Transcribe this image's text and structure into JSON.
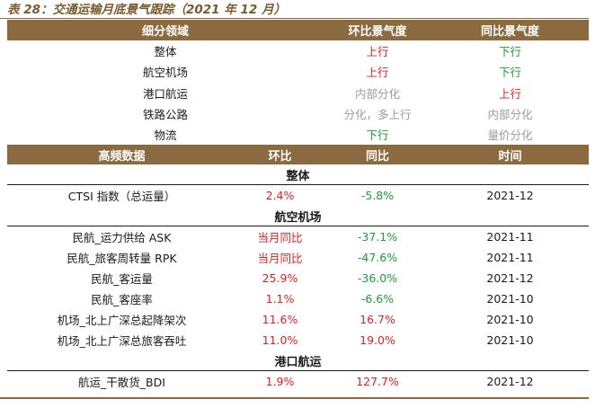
{
  "caption": "表 28：交通运输月底景气跟踪（2021 年 12 月）",
  "trend_table": {
    "headers": [
      "细分领域",
      "环比景气度",
      "同比景气度"
    ],
    "rows": [
      {
        "sector": "整体",
        "mom": "上行",
        "yoy": "下行",
        "mom_tone": "red",
        "yoy_tone": "green"
      },
      {
        "sector": "航空机场",
        "mom": "上行",
        "yoy": "下行",
        "mom_tone": "red",
        "yoy_tone": "green"
      },
      {
        "sector": "港口航运",
        "mom": "内部分化",
        "yoy": "上行",
        "mom_tone": "gray",
        "yoy_tone": "red"
      },
      {
        "sector": "铁路公路",
        "mom": "分化，多上行",
        "yoy": "内部分化",
        "mom_tone": "gray",
        "yoy_tone": "gray"
      },
      {
        "sector": "物流",
        "mom": "下行",
        "yoy": "量价分化",
        "mom_tone": "green",
        "yoy_tone": "gray"
      }
    ]
  },
  "freq_table": {
    "headers": [
      "高频数据",
      "环比",
      "同比",
      "时间"
    ],
    "groups": [
      {
        "title": "整体",
        "rows": [
          {
            "name": "CTSI 指数（总运量）",
            "mom": "2.4%",
            "yoy": "-5.8%",
            "time": "2021-12",
            "mom_tone": "red",
            "yoy_tone": "green"
          }
        ]
      },
      {
        "title": "航空机场",
        "rows": [
          {
            "name": "民航_运力供给 ASK",
            "mom": "当月同比",
            "yoy": "-37.1%",
            "time": "2021-11",
            "mom_tone": "red",
            "yoy_tone": "green"
          },
          {
            "name": "民航_旅客周转量 RPK",
            "mom": "当月同比",
            "yoy": "-47.6%",
            "time": "2021-11",
            "mom_tone": "red",
            "yoy_tone": "green"
          },
          {
            "name": "民航_客运量",
            "mom": "25.9%",
            "yoy": "-36.0%",
            "time": "2021-12",
            "mom_tone": "red",
            "yoy_tone": "green"
          },
          {
            "name": "民航_客座率",
            "mom": "1.1%",
            "yoy": "-6.6%",
            "time": "2021-10",
            "mom_tone": "red",
            "yoy_tone": "green"
          },
          {
            "name": "机场_北上广深总起降架次",
            "mom": "11.6%",
            "yoy": "16.7%",
            "time": "2021-10",
            "mom_tone": "red",
            "yoy_tone": "red"
          },
          {
            "name": "机场_北上广深总旅客吞吐",
            "mom": "11.0%",
            "yoy": "19.0%",
            "time": "2021-10",
            "mom_tone": "red",
            "yoy_tone": "red"
          }
        ]
      },
      {
        "title": "港口航运",
        "rows": [
          {
            "name": "航运_干散货_BDI",
            "mom": "1.9%",
            "yoy": "127.7%",
            "time": "2021-12",
            "mom_tone": "red",
            "yoy_tone": "red"
          }
        ]
      }
    ]
  },
  "colors": {
    "header_bg": "#8b6a3f",
    "up": "#e02020",
    "down": "#1aa034",
    "mixed": "#9a9a9a"
  }
}
